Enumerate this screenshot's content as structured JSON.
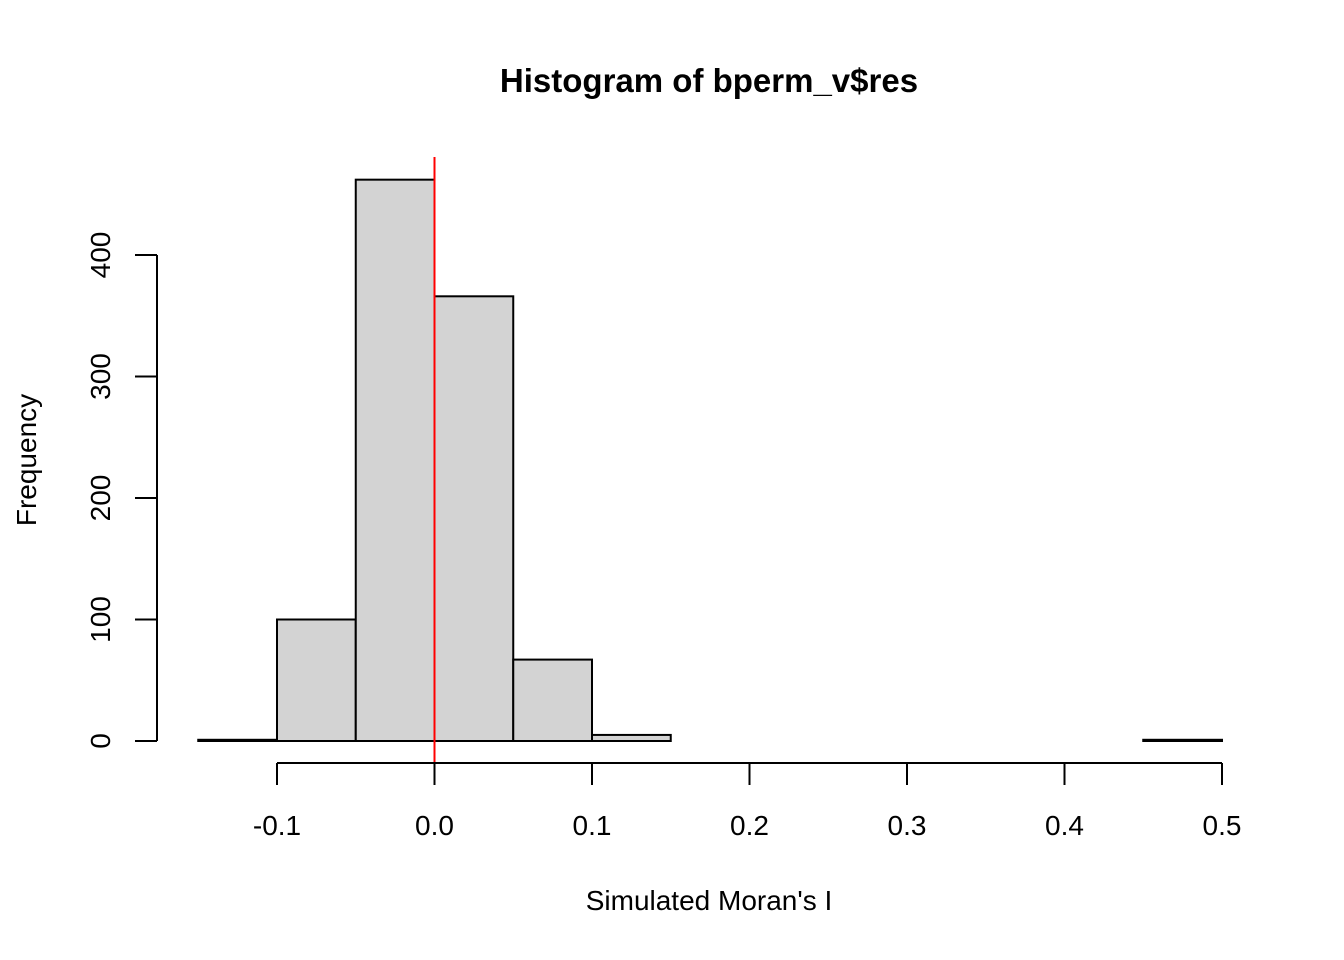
{
  "chart_data": {
    "type": "bar",
    "title": "Histogram of bperm_v$res",
    "xlabel": "Simulated Moran's I",
    "ylabel": "Frequency",
    "bin_edges": [
      -0.15,
      -0.1,
      -0.05,
      0.0,
      0.05,
      0.1,
      0.15,
      0.2,
      0.25,
      0.3,
      0.35,
      0.4,
      0.45,
      0.5
    ],
    "values": [
      1,
      100,
      462,
      366,
      67,
      5,
      0,
      0,
      0,
      0,
      0,
      0,
      1
    ],
    "xlim": [
      -0.15,
      0.5
    ],
    "ylim": [
      0,
      480
    ],
    "x_ticks": [
      -0.1,
      0.0,
      0.1,
      0.2,
      0.3,
      0.4,
      0.5
    ],
    "x_tick_labels": [
      "-0.1",
      "0.0",
      "0.1",
      "0.2",
      "0.3",
      "0.4",
      "0.5"
    ],
    "y_ticks": [
      0,
      100,
      200,
      300,
      400
    ],
    "y_tick_labels": [
      "0",
      "100",
      "200",
      "300",
      "400"
    ],
    "vline": {
      "x": 0.0,
      "color": "#ff0000"
    },
    "bar_fill": "#d3d3d3",
    "bar_stroke": "#000000",
    "grid": false,
    "legend": "none"
  }
}
